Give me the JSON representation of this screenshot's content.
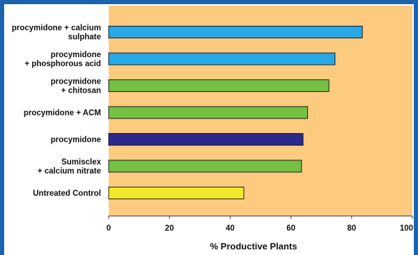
{
  "chart_data": {
    "type": "bar",
    "orientation": "horizontal",
    "categories": [
      "procymidone + calcium\nsulphate",
      "procymidone\n+ phosphorous acid",
      "procymidone\n+ chitosan",
      "procymidone + ACM",
      "procymidone",
      "Sumisclex\n+ calcium nitrate",
      "Untreated Control"
    ],
    "values": [
      83.5,
      74.5,
      72.5,
      65.5,
      64,
      63.5,
      44.5
    ],
    "bar_colors": [
      "#29a8e6",
      "#29a8e6",
      "#74c043",
      "#74c043",
      "#2b2a8c",
      "#74c043",
      "#f2e82a"
    ],
    "xlabel": "% Productive Plants",
    "xlim": [
      0,
      100
    ],
    "xticks": [
      0,
      20,
      40,
      60,
      80,
      100
    ],
    "plot_background": "#fccb80",
    "grid": false
  }
}
